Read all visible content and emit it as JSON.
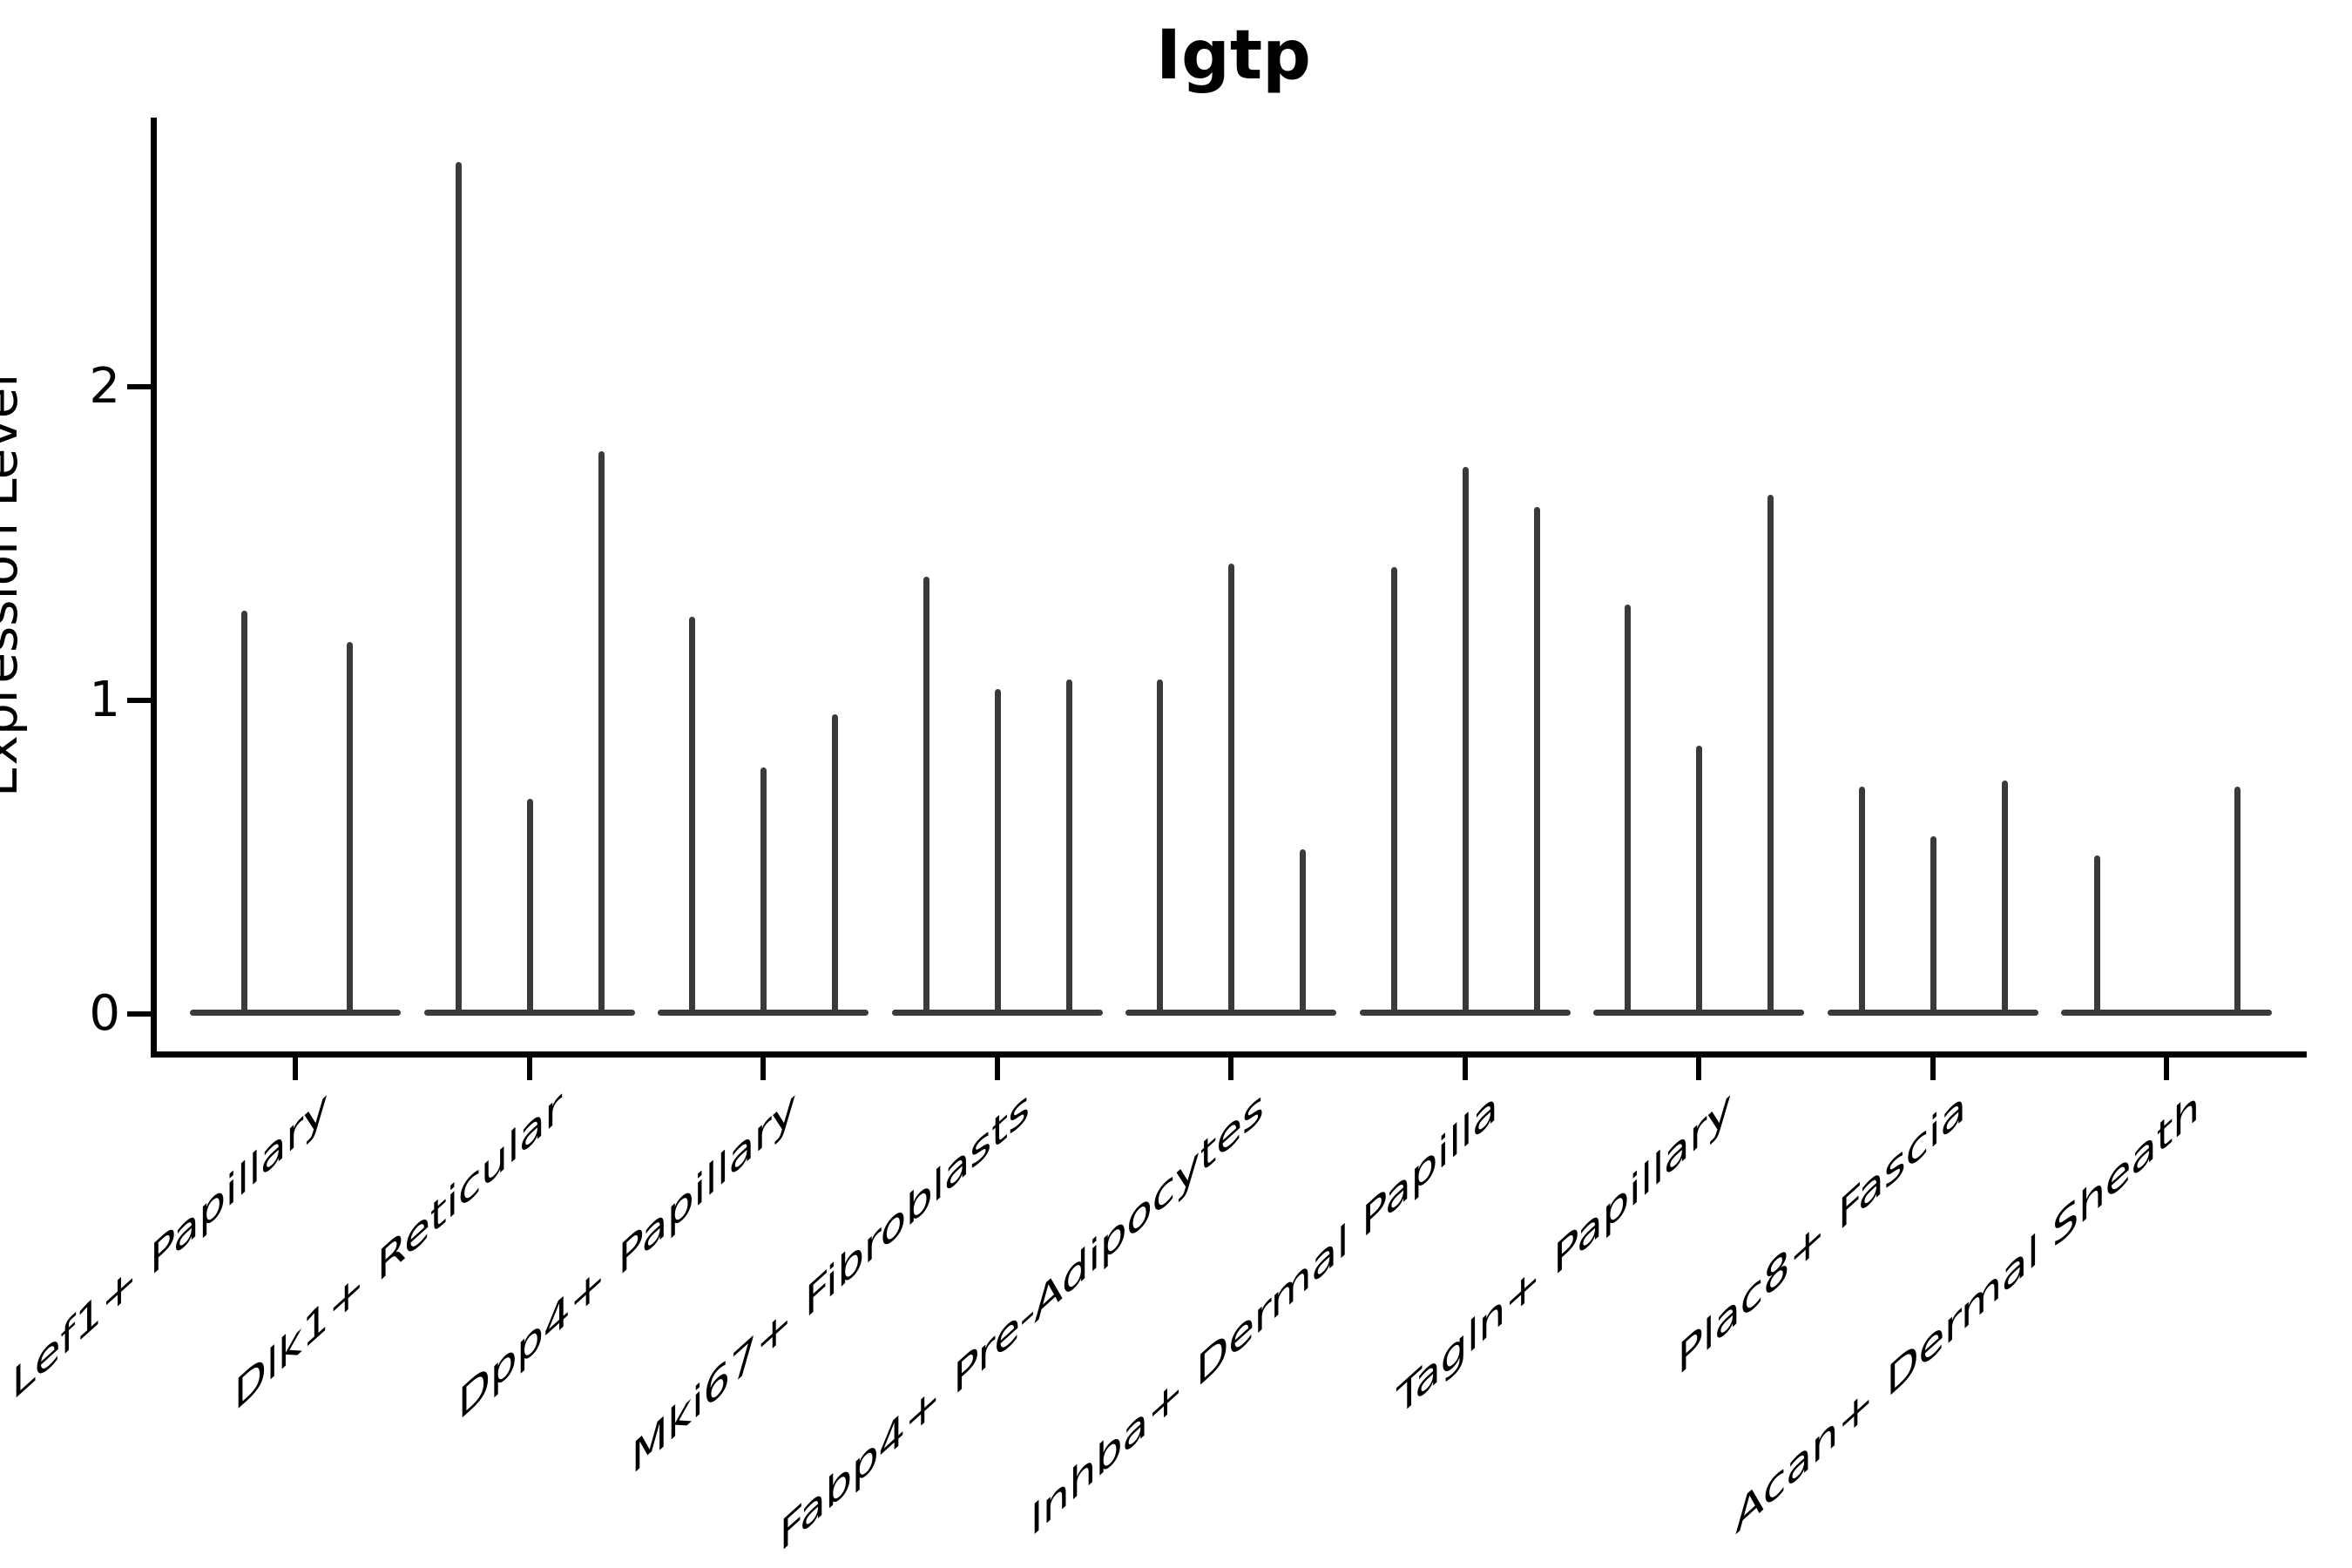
{
  "chart_data": {
    "type": "violin",
    "title": "Igtp",
    "ylabel": "Expression Level",
    "xlabel": "",
    "yticks": [
      0,
      1,
      2
    ],
    "ylim": [
      0,
      2.86
    ],
    "grid": false,
    "legend": "none",
    "description": "Violin plot of Igtp expression level per fibroblast cell type; violins are collapsed to thin spikes rising from a flat base at 0, 2-3 violins per category",
    "categories": [
      {
        "label": "Lef1+ Papillary",
        "violins": [
          {
            "dx": -59,
            "max": 1.28
          },
          {
            "dx": 62,
            "max": 1.18
          }
        ]
      },
      {
        "label": "Dlk1+ Reticular",
        "violins": [
          {
            "dx": -82,
            "max": 2.71
          },
          {
            "dx": 0,
            "max": 0.68
          },
          {
            "dx": 82,
            "max": 1.79
          }
        ]
      },
      {
        "label": "Dpp4+ Papillary",
        "violins": [
          {
            "dx": -82,
            "max": 1.26
          },
          {
            "dx": 0,
            "max": 0.78
          },
          {
            "dx": 82,
            "max": 0.95
          }
        ]
      },
      {
        "label": "Mki67+ Fibroblasts",
        "violins": [
          {
            "dx": -82,
            "max": 1.39
          },
          {
            "dx": 0,
            "max": 1.03
          },
          {
            "dx": 82,
            "max": 1.06
          }
        ]
      },
      {
        "label": "Fabp4+ Pre-Adipocytes",
        "violins": [
          {
            "dx": -82,
            "max": 1.06
          },
          {
            "dx": 0,
            "max": 1.43
          },
          {
            "dx": 82,
            "max": 0.52
          }
        ]
      },
      {
        "label": "Inhba+ Dermal Papilla",
        "violins": [
          {
            "dx": -82,
            "max": 1.42
          },
          {
            "dx": 0,
            "max": 1.74
          },
          {
            "dx": 82,
            "max": 1.61
          }
        ]
      },
      {
        "label": "Tagln+ Papillary",
        "violins": [
          {
            "dx": -82,
            "max": 1.3
          },
          {
            "dx": 0,
            "max": 0.85
          },
          {
            "dx": 82,
            "max": 1.65
          }
        ]
      },
      {
        "label": "Plac8+ Fascia",
        "violins": [
          {
            "dx": -82,
            "max": 0.72
          },
          {
            "dx": 0,
            "max": 0.56
          },
          {
            "dx": 82,
            "max": 0.74
          }
        ]
      },
      {
        "label": "Acan+ Dermal Sheath",
        "violins": [
          {
            "dx": -80,
            "max": 0.5
          },
          {
            "dx": 81,
            "max": 0.72
          }
        ]
      }
    ],
    "colors": {
      "violin": "#3a3a3a",
      "axis": "#000000",
      "text": "#000000",
      "background": "#ffffff"
    }
  }
}
